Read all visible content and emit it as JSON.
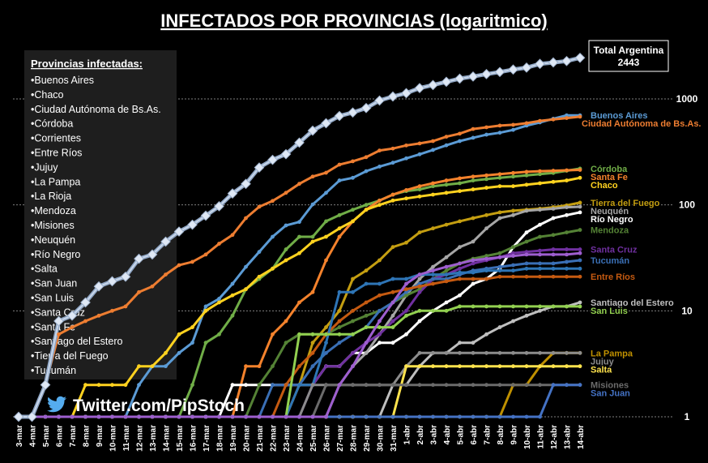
{
  "chart_data": {
    "type": "line",
    "title": "INFECTADOS POR PROVINCIAS (logaritmico)",
    "yscale": "log",
    "ylim": [
      1,
      2600
    ],
    "yticks": [
      1,
      10,
      100,
      1000
    ],
    "grid": "horizontal",
    "x": [
      "3-mar",
      "4-mar",
      "5-mar",
      "6-mar",
      "7-mar",
      "8-mar",
      "9-mar",
      "10-mar",
      "11-mar",
      "12-mar",
      "13-mar",
      "14-mar",
      "15-mar",
      "16-mar",
      "17-mar",
      "18-mar",
      "19-mar",
      "20-mar",
      "21-mar",
      "22-mar",
      "23-mar",
      "24-mar",
      "25-mar",
      "26-mar",
      "27-mar",
      "28-mar",
      "29-mar",
      "30-mar",
      "31-mar",
      "1-abr",
      "2-abr",
      "3-abr",
      "4-abr",
      "5-abr",
      "6-abr",
      "7-abr",
      "8-abr",
      "9-abr",
      "10-abr",
      "11-abr",
      "12-abr",
      "13-abr",
      "14-abr"
    ],
    "total_box": {
      "label": "Total Argentina",
      "value": "2443"
    },
    "series": [
      {
        "name": "Total Argentina",
        "color": "#c9d7ea",
        "label": "",
        "values": [
          1,
          1,
          2,
          8,
          9,
          12,
          17,
          19,
          21,
          31,
          34,
          45,
          56,
          65,
          79,
          97,
          128,
          158,
          225,
          266,
          301,
          387,
          502,
          589,
          690,
          745,
          820,
          966,
          1054,
          1133,
          1265,
          1353,
          1451,
          1554,
          1628,
          1715,
          1795,
          1894,
          1975,
          2142,
          2208,
          2277,
          2443
        ]
      },
      {
        "name": "Buenos Aires",
        "color": "#5b9bd5",
        "label": "Buenos Aires",
        "values": [
          1,
          1,
          1,
          1,
          1,
          1,
          1,
          1,
          1,
          2,
          3,
          3,
          4,
          5,
          11,
          13,
          18,
          26,
          36,
          50,
          64,
          69,
          101,
          130,
          170,
          180,
          208,
          230,
          250,
          275,
          300,
          330,
          365,
          400,
          430,
          460,
          480,
          510,
          560,
          600,
          650,
          700,
          700
        ]
      },
      {
        "name": "Ciudad Autónoma de Bs.As.",
        "color": "#ed7d31",
        "label": "Ciudad Autónoma de Bs.As.",
        "values": [
          1,
          1,
          2,
          6,
          7,
          8,
          9,
          10,
          11,
          15,
          17,
          22,
          27,
          29,
          34,
          43,
          52,
          75,
          96,
          109,
          130,
          158,
          185,
          201,
          240,
          258,
          282,
          326,
          340,
          364,
          380,
          400,
          440,
          470,
          520,
          540,
          560,
          570,
          590,
          620,
          640,
          660,
          680
        ]
      },
      {
        "name": "Córdoba",
        "color": "#70ad47",
        "label": "Córdoba",
        "values": [
          1,
          1,
          1,
          1,
          1,
          1,
          1,
          1,
          1,
          1,
          1,
          1,
          1,
          2,
          5,
          6,
          9,
          16,
          20,
          25,
          38,
          50,
          50,
          70,
          80,
          90,
          100,
          110,
          125,
          135,
          140,
          150,
          155,
          160,
          170,
          175,
          180,
          185,
          190,
          195,
          200,
          210,
          220
        ]
      },
      {
        "name": "Santa Fe",
        "color": "#f4822c",
        "label": "Santa Fe",
        "values": [
          1,
          1,
          1,
          1,
          1,
          1,
          1,
          1,
          1,
          1,
          1,
          1,
          1,
          1,
          1,
          1,
          1,
          3,
          3,
          6,
          8,
          12,
          15,
          30,
          50,
          70,
          90,
          110,
          125,
          138,
          150,
          160,
          170,
          178,
          185,
          190,
          195,
          200,
          205,
          208,
          210,
          212,
          214
        ]
      },
      {
        "name": "Chaco",
        "color": "#ffd21f",
        "label": "Chaco",
        "values": [
          1,
          1,
          1,
          1,
          1,
          2,
          2,
          2,
          2,
          3,
          3,
          4,
          6,
          7,
          10,
          12,
          14,
          16,
          21,
          25,
          30,
          35,
          45,
          50,
          60,
          70,
          90,
          100,
          110,
          115,
          120,
          125,
          130,
          135,
          140,
          145,
          150,
          150,
          155,
          160,
          165,
          170,
          180
        ]
      },
      {
        "name": "Tierra del Fuego",
        "color": "#c49e11",
        "label": "Tierra del Fuego",
        "values": [
          1,
          1,
          1,
          1,
          1,
          1,
          1,
          1,
          1,
          1,
          1,
          1,
          1,
          1,
          1,
          1,
          1,
          1,
          1,
          1,
          1,
          2,
          5,
          7,
          10,
          20,
          24,
          30,
          40,
          44,
          55,
          60,
          65,
          70,
          75,
          80,
          85,
          88,
          90,
          92,
          95,
          99,
          105
        ]
      },
      {
        "name": "Río Negro",
        "color": "#ffffff",
        "label": "Río Negro",
        "values": [
          1,
          1,
          1,
          1,
          1,
          1,
          1,
          1,
          1,
          1,
          1,
          1,
          1,
          1,
          1,
          1,
          2,
          2,
          2,
          2,
          2,
          2,
          2,
          3,
          3,
          4,
          4,
          5,
          5,
          6,
          8,
          10,
          12,
          14,
          18,
          20,
          25,
          40,
          55,
          65,
          75,
          80,
          85
        ]
      },
      {
        "name": "Neuquén",
        "color": "#a6a6a6",
        "label": "Neuquén",
        "values": [
          1,
          1,
          1,
          1,
          1,
          1,
          1,
          1,
          1,
          1,
          1,
          1,
          1,
          1,
          1,
          1,
          1,
          1,
          1,
          1,
          1,
          1,
          1,
          1,
          2,
          3,
          4,
          6,
          9,
          14,
          20,
          26,
          32,
          40,
          45,
          60,
          75,
          80,
          88,
          90,
          92,
          95,
          96
        ]
      },
      {
        "name": "Mendoza",
        "color": "#548235",
        "label": "Mendoza",
        "values": [
          1,
          1,
          1,
          1,
          1,
          1,
          1,
          1,
          1,
          1,
          1,
          1,
          1,
          1,
          1,
          1,
          1,
          1,
          2,
          3,
          5,
          6,
          6,
          6,
          7,
          8,
          9,
          10,
          12,
          14,
          16,
          20,
          24,
          28,
          31,
          33,
          35,
          40,
          45,
          50,
          52,
          55,
          58
        ]
      },
      {
        "name": "Santa Cruz",
        "color": "#7030a0",
        "label": "Santa Cruz",
        "values": [
          1,
          1,
          1,
          1,
          1,
          1,
          1,
          1,
          1,
          1,
          1,
          1,
          1,
          1,
          1,
          1,
          1,
          1,
          1,
          1,
          1,
          1,
          2,
          3,
          3,
          4,
          5,
          6,
          8,
          10,
          15,
          20,
          22,
          25,
          28,
          30,
          32,
          35,
          36,
          37,
          38,
          38,
          38
        ]
      },
      {
        "name": "Tucumán",
        "color": "#3a6fb5",
        "label": "Tucumán",
        "values": [
          1,
          1,
          1,
          1,
          1,
          1,
          1,
          1,
          1,
          1,
          1,
          1,
          1,
          1,
          1,
          1,
          1,
          1,
          1,
          2,
          2,
          2,
          3,
          4,
          5,
          6,
          7,
          10,
          12,
          15,
          18,
          20,
          20,
          22,
          24,
          25,
          26,
          27,
          28,
          28,
          28,
          29,
          30
        ]
      },
      {
        "name": "Entre Ríos",
        "color": "#c55a11",
        "label": "Entre Ríos",
        "values": [
          1,
          1,
          1,
          1,
          1,
          1,
          1,
          1,
          1,
          1,
          1,
          1,
          1,
          1,
          1,
          1,
          1,
          1,
          1,
          1,
          2,
          3,
          4,
          6,
          8,
          10,
          12,
          14,
          15,
          16,
          17,
          18,
          19,
          20,
          20,
          20,
          21,
          21,
          21,
          21,
          21,
          21,
          21
        ]
      },
      {
        "name": "Corrientes",
        "color": "#2e75b6",
        "label": "",
        "values": [
          1,
          1,
          1,
          1,
          1,
          1,
          1,
          1,
          1,
          1,
          1,
          1,
          1,
          1,
          1,
          1,
          1,
          1,
          1,
          1,
          1,
          2,
          2,
          5,
          15,
          15,
          18,
          18,
          20,
          20,
          22,
          22,
          22,
          23,
          23,
          24,
          24,
          24,
          25,
          25,
          25,
          25,
          25
        ]
      },
      {
        "name": "Santiago del Estero",
        "color": "#bfbfbf",
        "label": "Santiago del Estero",
        "values": [
          1,
          1,
          1,
          1,
          1,
          1,
          1,
          1,
          1,
          1,
          1,
          1,
          1,
          1,
          1,
          1,
          1,
          1,
          1,
          1,
          1,
          1,
          1,
          1,
          1,
          1,
          1,
          1,
          2,
          2,
          3,
          4,
          4,
          5,
          5,
          6,
          7,
          8,
          9,
          10,
          11,
          11,
          12
        ]
      },
      {
        "name": "San Luis",
        "color": "#92d050",
        "label": "San Luis",
        "values": [
          1,
          1,
          1,
          1,
          1,
          1,
          1,
          1,
          1,
          1,
          1,
          1,
          1,
          1,
          1,
          1,
          1,
          1,
          1,
          1,
          1,
          6,
          6,
          6,
          6,
          6,
          7,
          7,
          7,
          9,
          10,
          10,
          10,
          11,
          11,
          11,
          11,
          11,
          11,
          11,
          11,
          11,
          11
        ]
      },
      {
        "name": "La Pampa",
        "color": "#bf9000",
        "label": "La Pampa",
        "values": [
          1,
          1,
          1,
          1,
          1,
          1,
          1,
          1,
          1,
          1,
          1,
          1,
          1,
          1,
          1,
          1,
          1,
          1,
          1,
          1,
          1,
          1,
          1,
          1,
          1,
          1,
          1,
          1,
          1,
          1,
          1,
          1,
          1,
          1,
          1,
          1,
          1,
          2,
          2,
          3,
          4,
          4,
          4
        ]
      },
      {
        "name": "Jujuy",
        "color": "#8c8c8c",
        "label": "Jujuy",
        "values": [
          1,
          1,
          1,
          1,
          1,
          1,
          1,
          1,
          1,
          1,
          1,
          1,
          1,
          1,
          1,
          1,
          1,
          1,
          1,
          1,
          1,
          1,
          2,
          2,
          2,
          2,
          2,
          2,
          2,
          3,
          4,
          4,
          4,
          4,
          4,
          4,
          4,
          4,
          4,
          4,
          4,
          4,
          4
        ]
      },
      {
        "name": "Salta",
        "color": "#ffe34d",
        "label": "Salta",
        "values": [
          1,
          1,
          1,
          1,
          1,
          1,
          1,
          1,
          1,
          1,
          1,
          1,
          1,
          1,
          1,
          1,
          1,
          1,
          1,
          1,
          1,
          1,
          1,
          1,
          1,
          1,
          1,
          1,
          1,
          3,
          3,
          3,
          3,
          3,
          3,
          3,
          3,
          3,
          3,
          3,
          3,
          3,
          3
        ]
      },
      {
        "name": "Misiones",
        "color": "#6b6b6b",
        "label": "Misiones",
        "values": [
          1,
          1,
          1,
          1,
          1,
          1,
          1,
          1,
          1,
          1,
          1,
          1,
          1,
          1,
          1,
          1,
          1,
          1,
          1,
          1,
          1,
          1,
          1,
          2,
          2,
          2,
          2,
          2,
          2,
          2,
          2,
          2,
          2,
          2,
          2,
          2,
          2,
          2,
          2,
          2,
          2,
          2,
          2
        ]
      },
      {
        "name": "San Juan",
        "color": "#4472c4",
        "label": "San Juan",
        "values": [
          1,
          1,
          1,
          1,
          1,
          1,
          1,
          1,
          1,
          1,
          1,
          1,
          1,
          1,
          1,
          1,
          1,
          1,
          1,
          1,
          1,
          1,
          1,
          1,
          1,
          1,
          1,
          1,
          1,
          1,
          1,
          1,
          1,
          1,
          1,
          1,
          1,
          1,
          1,
          1,
          2,
          2,
          2
        ]
      },
      {
        "name": "La Rioja",
        "color": "#9e5ecf",
        "label": "",
        "values": [
          1,
          1,
          1,
          1,
          1,
          1,
          1,
          1,
          1,
          1,
          1,
          1,
          1,
          1,
          1,
          1,
          1,
          1,
          1,
          1,
          1,
          1,
          1,
          1,
          2,
          3,
          5,
          8,
          12,
          18,
          22,
          24,
          26,
          28,
          30,
          31,
          32,
          33,
          34,
          34,
          34,
          34,
          35
        ]
      }
    ]
  },
  "legend_box": {
    "title": "Provincias infectadas:",
    "items": [
      "Buenos Aires",
      "Chaco",
      "Ciudad Autónoma de Bs.As.",
      "Córdoba",
      "Corrientes",
      "Entre Ríos",
      "Jujuy",
      "La Pampa",
      "La Rioja",
      "Mendoza",
      "Misiones",
      "Neuquén",
      "Río Negro",
      "Salta",
      "San Juan",
      "San Luis",
      "Santa Cruz",
      "Santa Fe",
      "Santiago del Estero",
      "Tierra del Fuego",
      "Tucumán"
    ],
    "bullet": "•"
  },
  "footer": {
    "twitter": "Twitter.com/PipStoch",
    "icon": "twitter-bird-icon"
  }
}
